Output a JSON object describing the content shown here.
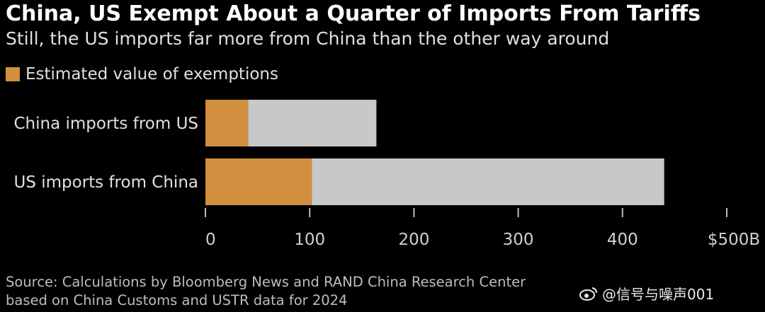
{
  "title": "China, US Exempt About a Quarter of Imports From Tariffs",
  "subtitle": "Still, the US imports far more from China than the other way around",
  "legend": {
    "label": "Estimated value of exemptions"
  },
  "colors": {
    "exempt": "#d18f3f",
    "total": "#c8c8c8",
    "axis": "#bdbdbd",
    "background": "#000000"
  },
  "chart_data": {
    "type": "bar",
    "orientation": "horizontal",
    "stacked": true,
    "categories": [
      "China imports from US",
      "US imports from China"
    ],
    "series": [
      {
        "name": "Estimated value of exemptions",
        "values": [
          41,
          102
        ]
      },
      {
        "values": [
          123,
          338
        ]
      }
    ],
    "totals": [
      164,
      440
    ],
    "xlim": [
      0,
      500
    ],
    "xticks": [
      0,
      100,
      200,
      300,
      400,
      500
    ],
    "xtick_labels": [
      "0",
      "100",
      "200",
      "300",
      "400",
      "$500B"
    ],
    "grid": false,
    "legend_position": "top-left"
  },
  "source": {
    "line1": "Source: Calculations by Bloomberg News and RAND China Research Center",
    "line2": "based on China Customs and USTR data for 2024"
  },
  "watermark": {
    "text": "@信号与噪声001",
    "logo_icon": "weibo-icon"
  }
}
